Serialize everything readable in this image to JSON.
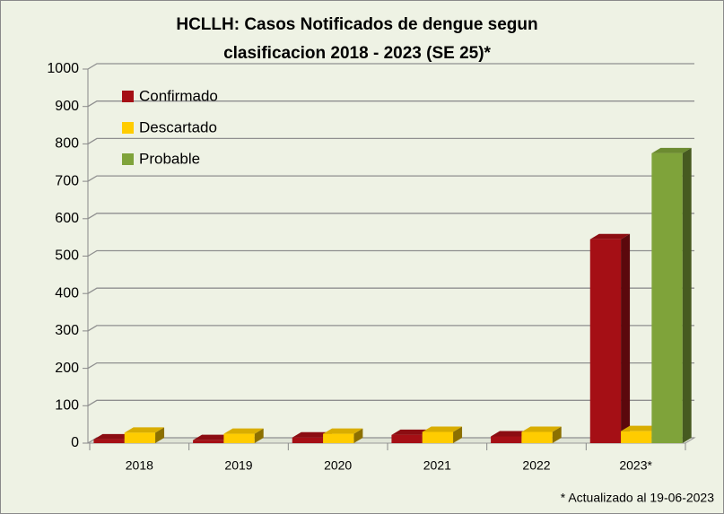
{
  "chart_data": {
    "type": "bar3d",
    "title": [
      "HCLLH: Casos Notificados de dengue segun",
      "clasificacion 2018 - 2023 (SE 25)*"
    ],
    "categories": [
      "2018",
      "2019",
      "2020",
      "2021",
      "2022",
      "2023*"
    ],
    "series": [
      {
        "name": "Confirmado",
        "color": "#a50f15",
        "values": [
          10,
          8,
          15,
          22,
          18,
          545
        ]
      },
      {
        "name": "Descartado",
        "color": "#ffcc00",
        "values": [
          28,
          25,
          25,
          30,
          30,
          32
        ]
      },
      {
        "name": "Probable",
        "color": "#7fa33a",
        "values": [
          0,
          0,
          0,
          0,
          0,
          775
        ]
      }
    ],
    "ylim": [
      0,
      1000
    ],
    "yticks": [
      0,
      100,
      200,
      300,
      400,
      500,
      600,
      700,
      800,
      900,
      1000
    ],
    "grid": true,
    "legend": "top-left",
    "footnote": "* Actualizado al 19-06-2023"
  }
}
